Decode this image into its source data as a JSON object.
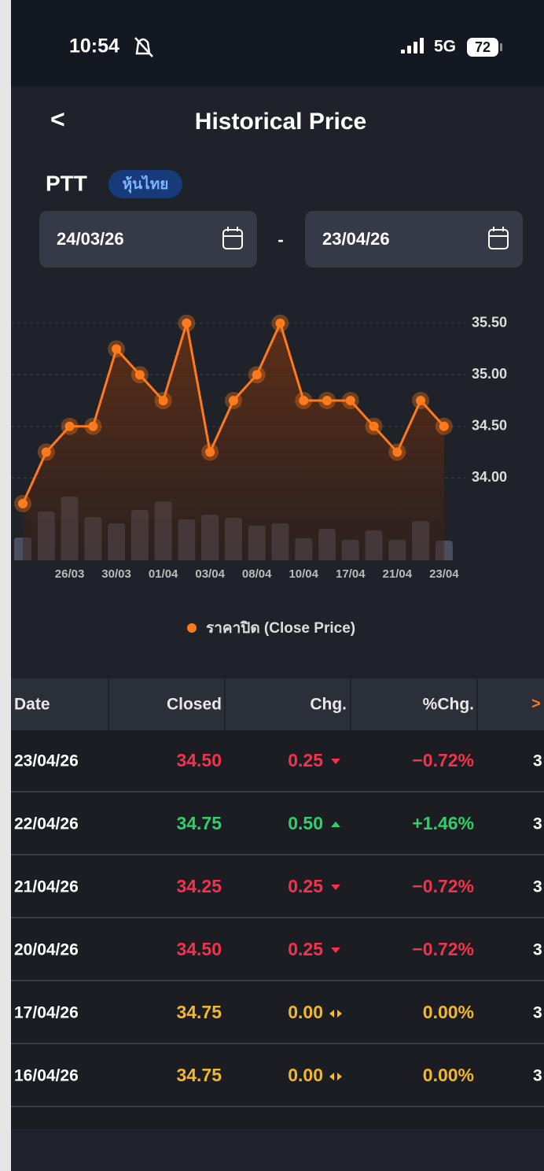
{
  "status_bar": {
    "time": "10:54",
    "network": "5G",
    "battery": "72"
  },
  "header": {
    "back": "<",
    "title": "Historical Price"
  },
  "symbol": {
    "name": "PTT",
    "badge": "หุ้นไทย"
  },
  "date_range": {
    "start": "24/03/26",
    "separator": "-",
    "end": "23/04/26"
  },
  "chart_data": {
    "type": "line",
    "categories": [
      null,
      null,
      "26/03",
      null,
      "30/03",
      null,
      "01/04",
      null,
      "03/04",
      null,
      "08/04",
      null,
      "10/04",
      null,
      "17/04",
      null,
      "21/04",
      null,
      "23/04"
    ],
    "series": [
      {
        "name": "ราคาปิด (Close Price)",
        "color": "#ff7a1a",
        "values": [
          33.75,
          34.25,
          34.5,
          34.5,
          35.25,
          35,
          34.75,
          35.5,
          34.25,
          34.75,
          35,
          35.5,
          34.75,
          34.75,
          34.75,
          34.5,
          34.25,
          34.75,
          34.5
        ]
      }
    ],
    "volume": {
      "color": "#4a4f60",
      "axis": "y2",
      "values": [
        29,
        62,
        81,
        55,
        47,
        64,
        75,
        52,
        58,
        54,
        44,
        47,
        28,
        40,
        26,
        38,
        26,
        50,
        25
      ]
    },
    "ylim": [
      33.2,
      35.7
    ],
    "yticks": [
      {
        "value": 34,
        "label": "34.00"
      },
      {
        "value": 34.5,
        "label": "34.50"
      },
      {
        "value": 35,
        "label": "35.00"
      },
      {
        "value": 35.5,
        "label": "35.50"
      }
    ],
    "y2lim": [
      0,
      100
    ],
    "grid": true,
    "legend": "bottom"
  },
  "table": {
    "columns": [
      "Date",
      "Closed",
      "Chg.",
      "%Chg."
    ],
    "more": ">",
    "colors": {
      "down": "#f0344d",
      "up": "#2fcf6a",
      "flat": "#f0b92d"
    },
    "rows": [
      {
        "date": "23/04/26",
        "closed": "34.50",
        "chg": "0.25",
        "pct": "−0.72%",
        "next": "3",
        "trend": "down"
      },
      {
        "date": "22/04/26",
        "closed": "34.75",
        "chg": "0.50",
        "pct": "+1.46%",
        "next": "3",
        "trend": "up"
      },
      {
        "date": "21/04/26",
        "closed": "34.25",
        "chg": "0.25",
        "pct": "−0.72%",
        "next": "3",
        "trend": "down"
      },
      {
        "date": "20/04/26",
        "closed": "34.50",
        "chg": "0.25",
        "pct": "−0.72%",
        "next": "3",
        "trend": "down"
      },
      {
        "date": "17/04/26",
        "closed": "34.75",
        "chg": "0.00",
        "pct": "0.00%",
        "next": "3",
        "trend": "flat"
      },
      {
        "date": "16/04/26",
        "closed": "34.75",
        "chg": "0.00",
        "pct": "0.00%",
        "next": "3",
        "trend": "flat"
      }
    ]
  }
}
